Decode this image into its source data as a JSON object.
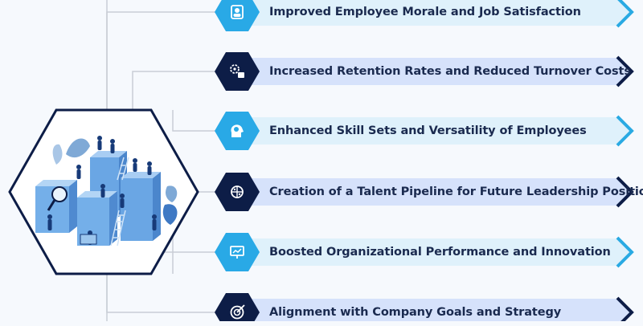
{
  "colors": {
    "background": "#f6f9fd",
    "connector": "#c9ced6",
    "light_band": "#dff1fb",
    "light_band_edge": "#cfe9f7",
    "dark_band": "#d6e2fb",
    "light_hex": "#29a9e6",
    "dark_hex": "#0d1d47",
    "light_chevron": "#2aaae3",
    "dark_chevron": "#0d1d47",
    "hub_border": "#0d1d47",
    "text": "#1a2a4f"
  },
  "hub": {
    "illustration_icon": "team-building-blocks-illustration"
  },
  "benefits": [
    {
      "label": "Improved Employee Morale and Job Satisfaction",
      "icon": "employee-badge-icon",
      "style": "light"
    },
    {
      "label": "Increased Retention Rates and Reduced Turnover Costs",
      "icon": "retention-gear-icon",
      "style": "dark"
    },
    {
      "label": "Enhanced Skill Sets and Versatility of Employees",
      "icon": "head-lightbulb-icon",
      "style": "light"
    },
    {
      "label": "Creation of a Talent Pipeline for Future Leadership Positions",
      "icon": "brain-network-icon",
      "style": "dark"
    },
    {
      "label": "Boosted Organizational Performance and Innovation",
      "icon": "presentation-board-icon",
      "style": "light"
    },
    {
      "label": "Alignment with Company Goals and Strategy",
      "icon": "target-arrow-icon",
      "style": "dark"
    }
  ]
}
